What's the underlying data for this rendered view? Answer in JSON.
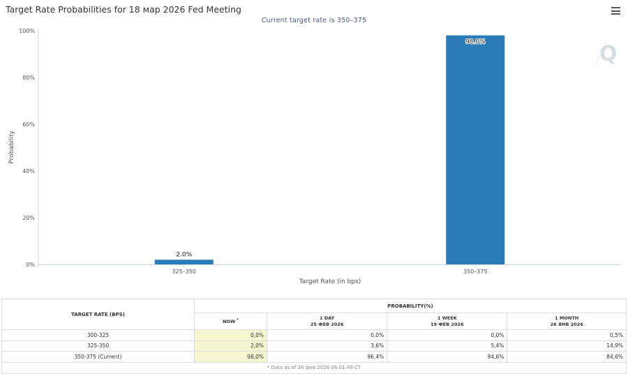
{
  "chart": {
    "title": "Target Rate Probabilities for 18 мар 2026 Fed Meeting",
    "subtitle": "Current target rate is 350–375",
    "menu_icon": "hamburger-menu-icon",
    "watermark_icon": "quikstrike-q-logo-icon",
    "bar_color": "#2b7bb9"
  },
  "chart_data": {
    "type": "bar",
    "categories": [
      "325–350",
      "350–375"
    ],
    "values": [
      2.0,
      98.0
    ],
    "data_labels": [
      "2.0%",
      "98.0%"
    ],
    "xlabel": "Target Rate (in bps)",
    "ylabel": "Probability",
    "ylim": [
      0,
      100
    ],
    "yticks": [
      "0%",
      "20%",
      "40%",
      "60%",
      "80%",
      "100%"
    ],
    "grid": false
  },
  "table": {
    "col_rate_header": "TARGET RATE (BPS)",
    "col_prob_header": "PROBABILITY(%)",
    "now_label": "NOW",
    "now_marker": "*",
    "periods": [
      {
        "label": "1 DAY",
        "date": "25 ФЕВ 2026"
      },
      {
        "label": "1 WEEK",
        "date": "19 ФЕВ 2026"
      },
      {
        "label": "1 MONTH",
        "date": "26 ЯНВ 2026"
      }
    ],
    "rows": [
      {
        "rate": "300-325",
        "now": "0,0%",
        "day": "0,0%",
        "week": "0,0%",
        "month": "0,5%"
      },
      {
        "rate": "325-350",
        "now": "2,0%",
        "day": "3,6%",
        "week": "5,4%",
        "month": "14,9%"
      },
      {
        "rate": "350-375 (Current)",
        "now": "98,0%",
        "day": "96,4%",
        "week": "94,6%",
        "month": "84,6%"
      }
    ],
    "footnote": "* Data as of 26 фев 2026 06:01:49 CT",
    "now_highlight_color": "#f5f7d0"
  }
}
